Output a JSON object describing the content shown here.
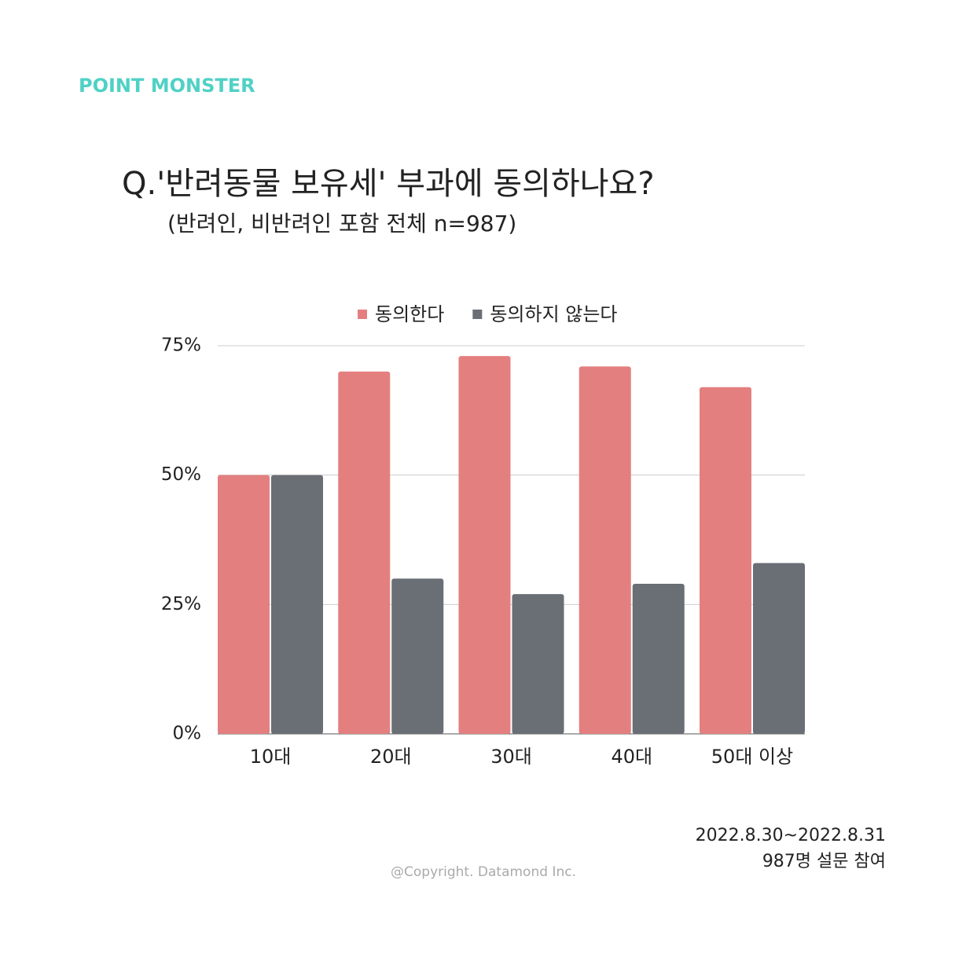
{
  "chart_data": {
    "type": "bar",
    "brand": "POINT MONSTER",
    "title": "Q.'반려동물 보유세' 부과에 동의하나요?",
    "subtitle": "(반려인, 비반려인 포함 전체 n=987)",
    "categories": [
      "10대",
      "20대",
      "30대",
      "40대",
      "50대 이상"
    ],
    "series": [
      {
        "name": "동의한다",
        "color": "#e47f7f",
        "values": [
          50,
          70,
          73,
          71,
          67
        ]
      },
      {
        "name": "동의하지 않는다",
        "color": "#6a6e75",
        "values": [
          50,
          30,
          27,
          29,
          33
        ]
      }
    ],
    "ylim": [
      0,
      75
    ],
    "yticks": [
      {
        "value": 0,
        "label": "0%"
      },
      {
        "value": 25,
        "label": "25%"
      },
      {
        "value": 50,
        "label": "50%"
      },
      {
        "value": 75,
        "label": "75%"
      }
    ],
    "grid": true,
    "legend": "top",
    "date_range": "2022.8.30~2022.8.31",
    "note": "987명 설문 참여",
    "copyright": "@Copyright. Datamond Inc."
  }
}
